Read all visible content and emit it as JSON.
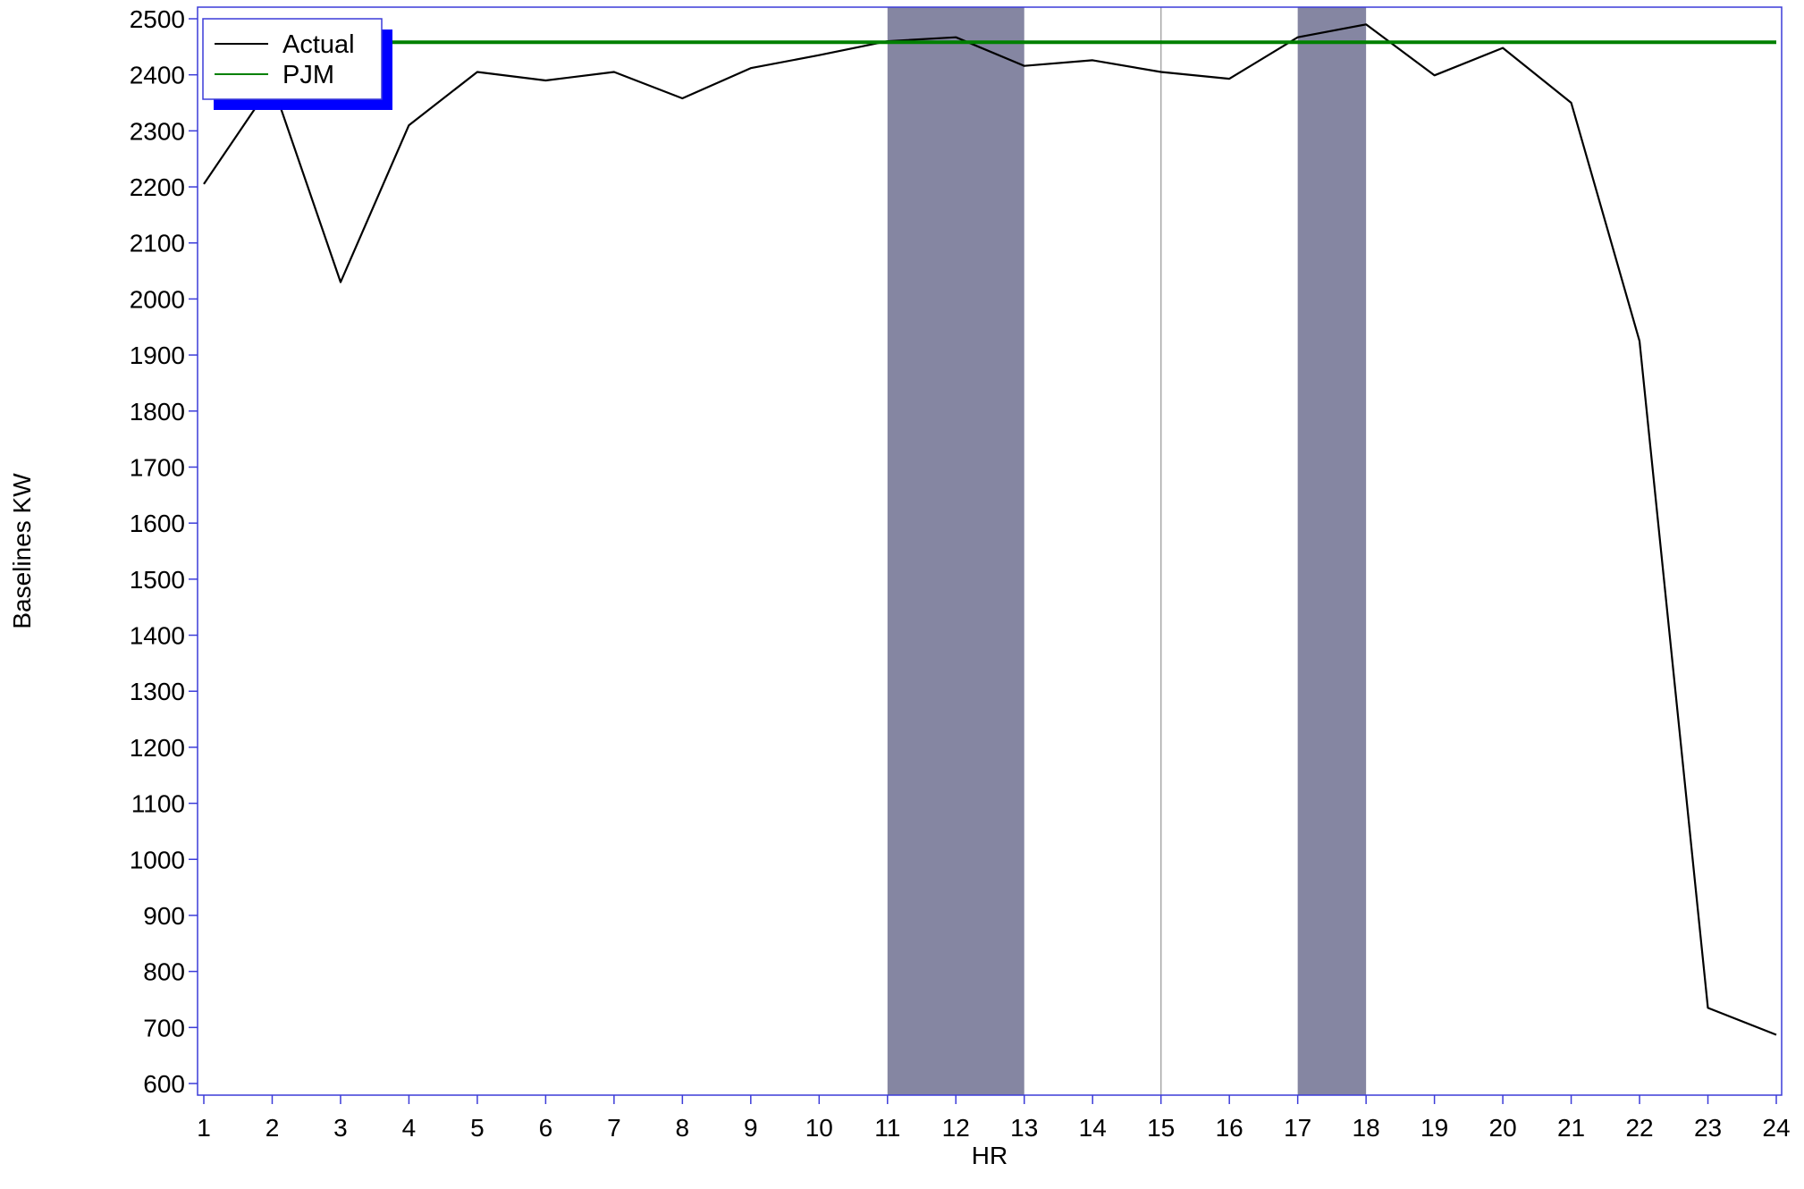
{
  "chart_data": {
    "type": "line",
    "title": "",
    "xlabel": "HR",
    "ylabel": "Baselines KW",
    "x": [
      1,
      2,
      3,
      4,
      5,
      6,
      7,
      8,
      9,
      10,
      11,
      12,
      13,
      14,
      15,
      16,
      17,
      18,
      19,
      20,
      21,
      22,
      23,
      24
    ],
    "xlim": [
      1,
      24
    ],
    "ylim": [
      580,
      2500
    ],
    "x_ticks": [
      1,
      2,
      3,
      4,
      5,
      6,
      7,
      8,
      9,
      10,
      11,
      12,
      13,
      14,
      15,
      16,
      17,
      18,
      19,
      20,
      21,
      22,
      23,
      24
    ],
    "y_ticks": [
      600,
      700,
      800,
      900,
      1000,
      1100,
      1200,
      1300,
      1400,
      1500,
      1600,
      1700,
      1800,
      1900,
      2000,
      2100,
      2200,
      2300,
      2400,
      2500
    ],
    "series": [
      {
        "name": "Actual",
        "color": "#000000",
        "values": [
          2205,
          2385,
          2030,
          2310,
          2405,
          2390,
          2405,
          2358,
          2412,
          2435,
          2460,
          2467,
          2416,
          2426,
          2405,
          2393,
          2467,
          2490,
          2399,
          2448,
          2350,
          1925,
          735,
          687
        ]
      },
      {
        "name": "PJM",
        "color": "#008000",
        "values": [
          2458,
          2458,
          2458,
          2458,
          2458,
          2458,
          2458,
          2458,
          2458,
          2458,
          2458,
          2458,
          2458,
          2458,
          2458,
          2458,
          2458,
          2458,
          2458,
          2458,
          2458,
          2458,
          2458,
          2458
        ]
      }
    ],
    "shaded_regions": [
      {
        "x_start": 11,
        "x_end": 13,
        "color": "#8586a2"
      },
      {
        "x_start": 17,
        "x_end": 18,
        "color": "#8586a2"
      }
    ],
    "reference_lines": [
      {
        "x": 15,
        "color": "#a8a8a8"
      }
    ],
    "legend": {
      "placement": "top-left",
      "entries": [
        "Actual",
        "PJM"
      ],
      "shadow_color": "#0000ff"
    },
    "grid": false,
    "frame_color": "#3c3cd8"
  }
}
